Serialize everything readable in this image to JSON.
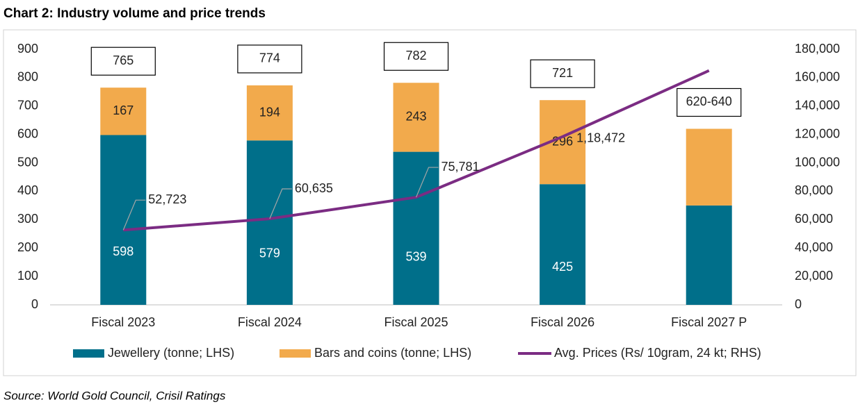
{
  "chart_data": {
    "type": "bar",
    "stacked": true,
    "title": "Chart 2: Industry volume and price trends",
    "source": "Source: World Gold Council, Crisil Ratings",
    "categories": [
      "Fiscal 2023",
      "Fiscal 2024",
      "Fiscal 2025",
      "Fiscal 2026",
      "Fiscal 2027 P"
    ],
    "series": [
      {
        "name": "Jewellery (tonne; LHS)",
        "color": "#006f8a",
        "values": [
          598,
          579,
          539,
          425,
          350
        ],
        "value_labels": [
          "598",
          "579",
          "539",
          "425",
          null
        ]
      },
      {
        "name": "Bars and coins (tonne; LHS)",
        "color": "#f2aa4c",
        "values": [
          167,
          194,
          243,
          296,
          270
        ],
        "value_labels": [
          "167",
          "194",
          "243",
          "296",
          null
        ]
      },
      {
        "name": "Avg. Prices (Rs/ 10gram, 24 kt; RHS)",
        "type": "line",
        "axis": "y2",
        "color": "#7b2c83",
        "values": [
          52723,
          60635,
          75781,
          118472,
          165000
        ],
        "value_labels": [
          "52,723",
          "60,635",
          "75,781",
          "1,18,472",
          null
        ]
      }
    ],
    "total_labels": [
      "765",
      "774",
      "782",
      "721",
      "620-640"
    ],
    "ylim": [
      0,
      900
    ],
    "yticks": [
      0,
      100,
      200,
      300,
      400,
      500,
      600,
      700,
      800,
      900
    ],
    "y2lim": [
      0,
      180000
    ],
    "y2ticks": [
      0,
      {
        "value": 20000,
        "label": "20,000"
      },
      {
        "value": 40000,
        "label": "40,000"
      },
      {
        "value": 60000,
        "label": "60,000"
      },
      {
        "value": 80000,
        "label": "80,000"
      },
      {
        "value": 100000,
        "label": "100,000"
      },
      {
        "value": 120000,
        "label": "120,000"
      },
      {
        "value": 140000,
        "label": "140,000"
      },
      {
        "value": 160000,
        "label": "160,000"
      },
      {
        "value": 180000,
        "label": "180,000"
      }
    ]
  }
}
